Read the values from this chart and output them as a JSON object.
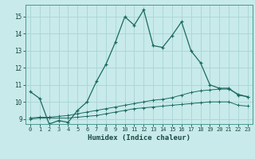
{
  "title": "",
  "xlabel": "Humidex (Indice chaleur)",
  "bg_color": "#c8eaea",
  "line_color": "#1a6b60",
  "grid_color": "#aad4d4",
  "xlim": [
    -0.5,
    23.5
  ],
  "ylim": [
    8.7,
    15.7
  ],
  "yticks": [
    9,
    10,
    11,
    12,
    13,
    14,
    15
  ],
  "xticks": [
    0,
    1,
    2,
    3,
    4,
    5,
    6,
    7,
    8,
    9,
    10,
    11,
    12,
    13,
    14,
    15,
    16,
    17,
    18,
    19,
    20,
    21,
    22,
    23
  ],
  "line1_x": [
    0,
    1,
    2,
    3,
    4,
    5,
    6,
    7,
    8,
    9,
    10,
    11,
    12,
    13,
    14,
    15,
    16,
    17,
    18,
    19,
    20,
    21,
    22,
    23
  ],
  "line1_y": [
    10.6,
    10.2,
    8.7,
    8.9,
    8.8,
    9.5,
    10.0,
    11.2,
    12.2,
    13.5,
    15.0,
    14.5,
    15.4,
    13.3,
    13.2,
    13.9,
    14.7,
    13.0,
    12.3,
    11.0,
    10.8,
    10.8,
    10.4,
    10.3
  ],
  "line2_x": [
    0,
    1,
    2,
    3,
    4,
    5,
    6,
    7,
    8,
    9,
    10,
    11,
    12,
    13,
    14,
    15,
    16,
    17,
    18,
    19,
    20,
    21,
    22,
    23
  ],
  "line2_y": [
    9.05,
    9.1,
    9.1,
    9.15,
    9.2,
    9.3,
    9.4,
    9.5,
    9.6,
    9.7,
    9.8,
    9.9,
    10.0,
    10.1,
    10.15,
    10.25,
    10.4,
    10.55,
    10.65,
    10.7,
    10.75,
    10.75,
    10.45,
    10.3
  ],
  "line3_x": [
    0,
    1,
    2,
    3,
    4,
    5,
    6,
    7,
    8,
    9,
    10,
    11,
    12,
    13,
    14,
    15,
    16,
    17,
    18,
    19,
    20,
    21,
    22,
    23
  ],
  "line3_y": [
    9.0,
    9.05,
    9.05,
    9.05,
    9.05,
    9.1,
    9.15,
    9.2,
    9.3,
    9.4,
    9.5,
    9.6,
    9.65,
    9.7,
    9.75,
    9.8,
    9.85,
    9.9,
    9.95,
    10.0,
    10.0,
    10.0,
    9.8,
    9.75
  ]
}
